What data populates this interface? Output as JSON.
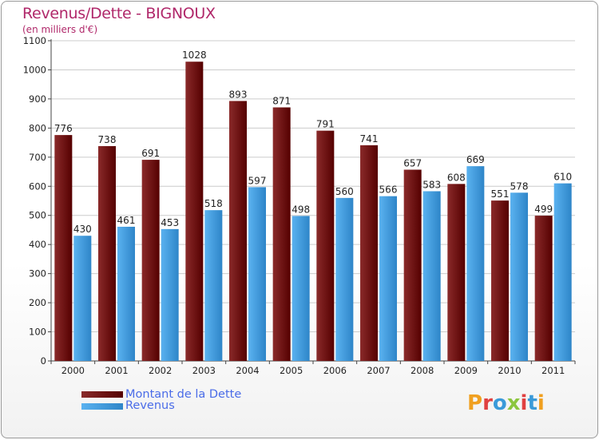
{
  "title": "Revenus/Dette - BIGNOUX",
  "subtitle": "(en milliers d'€)",
  "logo_text": "Proxiti",
  "colors": {
    "debt": "#6a0d0d",
    "revenue": "#4aa4e6",
    "title": "#b0286a",
    "legend_text": "#4a6ce8"
  },
  "chart_data": {
    "type": "bar",
    "title": "Revenus/Dette - BIGNOUX",
    "subtitle": "(en milliers d'€)",
    "categories": [
      "2000",
      "2001",
      "2002",
      "2003",
      "2004",
      "2005",
      "2006",
      "2007",
      "2008",
      "2009",
      "2010",
      "2011"
    ],
    "series": [
      {
        "name": "Montant de la Dette",
        "values": [
          776,
          738,
          691,
          1028,
          893,
          871,
          791,
          741,
          657,
          608,
          551,
          499
        ]
      },
      {
        "name": "Revenus",
        "values": [
          430,
          461,
          453,
          518,
          597,
          498,
          560,
          566,
          583,
          669,
          578,
          610
        ]
      }
    ],
    "ylim": [
      0,
      1100
    ],
    "yticks": [
      0,
      100,
      200,
      300,
      400,
      500,
      600,
      700,
      800,
      900,
      1000,
      1100
    ],
    "grid": true,
    "legend": "bottom-left"
  }
}
